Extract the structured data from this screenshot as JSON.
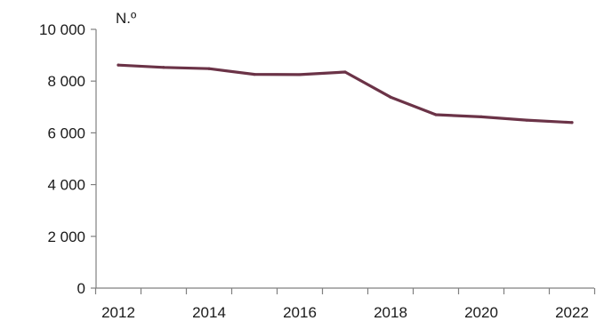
{
  "chart_data": {
    "type": "line",
    "title": "",
    "xlabel": "",
    "ylabel": "N.º",
    "ylim": [
      0,
      10000
    ],
    "yticks": [
      0,
      2000,
      4000,
      6000,
      8000,
      10000
    ],
    "ytick_labels": [
      "0",
      "2 000",
      "4 000",
      "6 000",
      "8 000",
      "10 000"
    ],
    "x": [
      2012,
      2013,
      2014,
      2015,
      2016,
      2017,
      2018,
      2019,
      2020,
      2021,
      2022
    ],
    "xtick_labels": [
      "2012",
      "2014",
      "2016",
      "2018",
      "2020",
      "2022"
    ],
    "grid": false,
    "legend": "none",
    "series": [
      {
        "color": "#6b3347",
        "values": [
          8620,
          8530,
          8480,
          8260,
          8250,
          8350,
          7380,
          6700,
          6620,
          6490,
          6400
        ]
      }
    ]
  }
}
